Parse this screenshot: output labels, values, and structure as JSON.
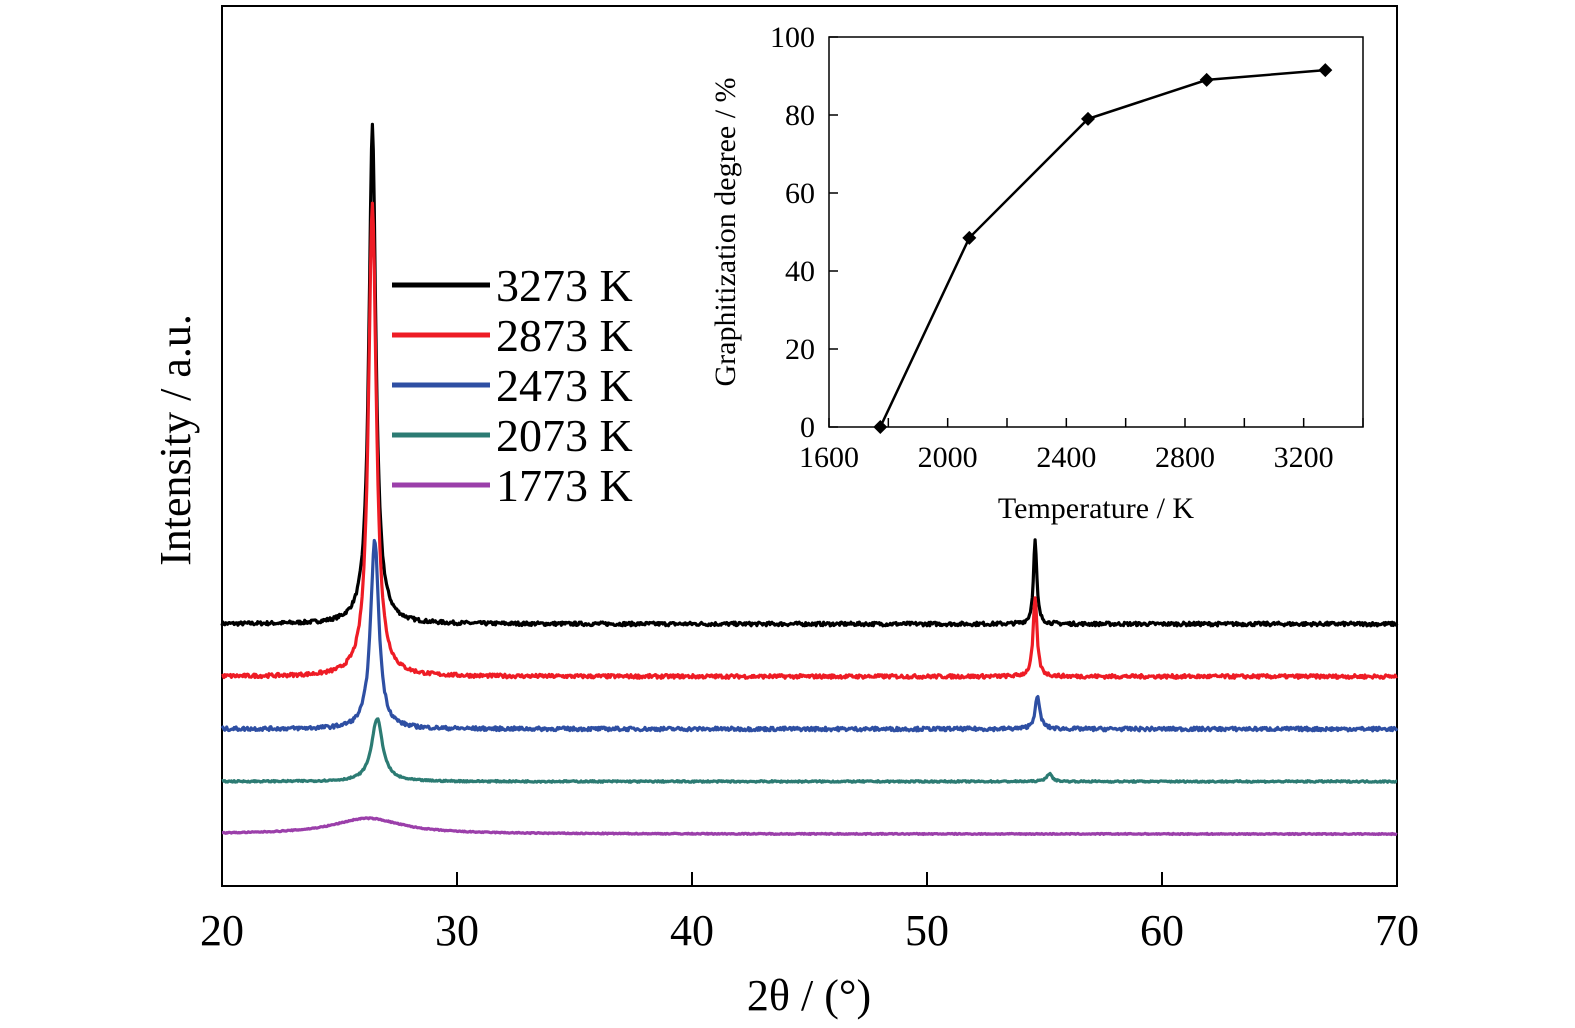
{
  "chart_data": [
    {
      "type": "line",
      "title": "",
      "xlabel": "2θ / (°)",
      "ylabel": "Intensity / a.u.",
      "xlim": [
        20,
        70
      ],
      "xticks": [
        20,
        30,
        40,
        50,
        60,
        70
      ],
      "xtick_labels": [
        "20",
        "30",
        "40",
        "50",
        "60",
        "70"
      ],
      "y_ticks_shown": false,
      "grid": false,
      "legend_position": "upper-left",
      "series": [
        {
          "name": "3273 K",
          "color": "#000000",
          "baseline": 4.0,
          "peaks": [
            {
              "center": 26.4,
              "height": 9.5,
              "width": 0.25
            },
            {
              "center": 54.6,
              "height": 1.6,
              "width": 0.12
            }
          ]
        },
        {
          "name": "2873 K",
          "color": "#ee1c25",
          "baseline": 3.0,
          "peaks": [
            {
              "center": 26.4,
              "height": 9.0,
              "width": 0.28
            },
            {
              "center": 54.6,
              "height": 1.5,
              "width": 0.14
            }
          ]
        },
        {
          "name": "2473 K",
          "color": "#2e4fa3",
          "baseline": 2.0,
          "peaks": [
            {
              "center": 26.5,
              "height": 3.6,
              "width": 0.3
            },
            {
              "center": 54.7,
              "height": 0.6,
              "width": 0.18
            }
          ]
        },
        {
          "name": "2073 K",
          "color": "#2c7b73",
          "baseline": 1.0,
          "peaks": [
            {
              "center": 26.6,
              "height": 1.2,
              "width": 0.4
            },
            {
              "center": 55.2,
              "height": 0.15,
              "width": 0.2
            }
          ]
        },
        {
          "name": "1773 K",
          "color": "#9b3faa",
          "baseline": 0.0,
          "peaks": [
            {
              "center": 26.2,
              "height": 0.3,
              "width": 2.5
            }
          ]
        }
      ]
    },
    {
      "type": "line",
      "title": "",
      "xlabel": "Temperature / K",
      "ylabel": "Graphitization degree / %",
      "xlim": [
        1600,
        3400
      ],
      "ylim": [
        0,
        100
      ],
      "xticks": [
        1600,
        2000,
        2400,
        2800,
        3200
      ],
      "yticks": [
        0,
        20,
        40,
        60,
        80,
        100
      ],
      "grid": false,
      "marker": "diamond",
      "series": [
        {
          "x": [
            1773,
            2073,
            2473,
            2873,
            3273
          ],
          "y": [
            0,
            48.5,
            79,
            89,
            91.5
          ],
          "color": "#000000"
        }
      ]
    }
  ]
}
